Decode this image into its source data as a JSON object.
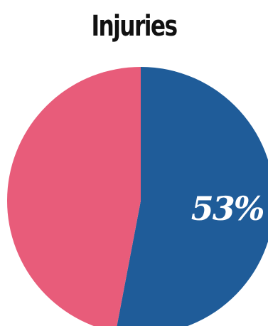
{
  "chart_data": {
    "type": "pie",
    "title": "Injuries",
    "slices": [
      {
        "value": 53,
        "label": "53%",
        "color": "#1f5c99"
      },
      {
        "value": 47,
        "label": "",
        "color": "#e85c7a"
      }
    ]
  }
}
